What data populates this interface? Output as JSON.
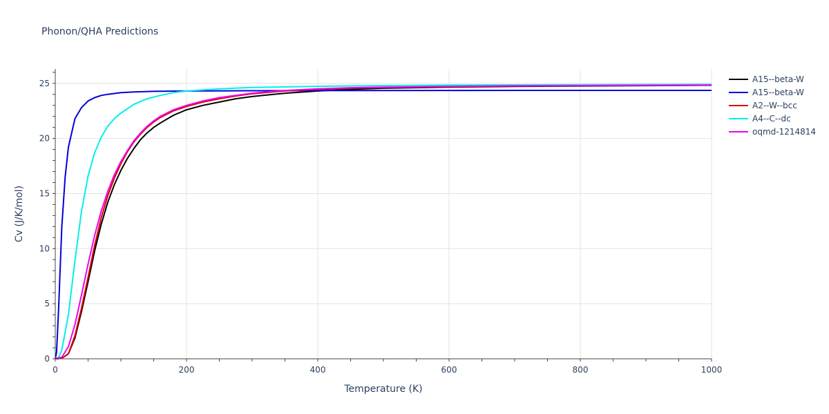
{
  "chart_data": {
    "type": "line",
    "title": "Phonon/QHA Predictions",
    "xlabel": "Temperature (K)",
    "ylabel": "Cv (J/K/mol)",
    "xlim": [
      0,
      1000
    ],
    "ylim": [
      0,
      26.3
    ],
    "xticks": [
      0,
      200,
      400,
      600,
      800,
      1000
    ],
    "yticks": [
      0,
      5,
      10,
      15,
      20,
      25
    ],
    "grid": true,
    "legend_position": "top-right outside",
    "series": [
      {
        "name": "A15--beta-W",
        "color": "#000000",
        "x": [
          0,
          10,
          20,
          30,
          40,
          50,
          60,
          70,
          80,
          90,
          100,
          110,
          120,
          130,
          140,
          150,
          160,
          180,
          200,
          225,
          250,
          275,
          300,
          350,
          400,
          450,
          500,
          600,
          700,
          800,
          900,
          1000
        ],
        "y": [
          0,
          0.05,
          0.45,
          1.9,
          4.3,
          7.0,
          9.8,
          12.2,
          14.2,
          15.8,
          17.1,
          18.2,
          19.1,
          19.9,
          20.5,
          21.0,
          21.4,
          22.1,
          22.6,
          23.0,
          23.3,
          23.6,
          23.8,
          24.1,
          24.3,
          24.45,
          24.55,
          24.65,
          24.72,
          24.76,
          24.79,
          24.82
        ]
      },
      {
        "name": "A15--beta-W",
        "color": "#0000dd",
        "x": [
          0,
          2,
          5,
          10,
          15,
          20,
          30,
          40,
          50,
          60,
          70,
          80,
          100,
          120,
          150,
          200,
          300,
          400,
          600,
          800,
          1000
        ],
        "y": [
          0,
          0.6,
          4.5,
          12.0,
          16.5,
          19.2,
          21.8,
          22.8,
          23.4,
          23.7,
          23.9,
          24.0,
          24.15,
          24.22,
          24.27,
          24.3,
          24.33,
          24.34,
          24.35,
          24.36,
          24.36
        ]
      },
      {
        "name": "A2--W--bcc",
        "color": "#dd0000",
        "x": [
          0,
          10,
          20,
          30,
          40,
          50,
          60,
          70,
          80,
          90,
          100,
          110,
          120,
          130,
          140,
          150,
          160,
          180,
          200,
          225,
          250,
          275,
          300,
          350,
          400,
          450,
          500,
          600,
          700,
          800,
          900,
          1000
        ],
        "y": [
          0,
          0.05,
          0.45,
          2.1,
          4.6,
          7.4,
          10.3,
          12.8,
          14.8,
          16.4,
          17.7,
          18.8,
          19.7,
          20.4,
          21.0,
          21.5,
          21.9,
          22.5,
          22.9,
          23.3,
          23.6,
          23.85,
          24.05,
          24.3,
          24.45,
          24.55,
          24.62,
          24.7,
          24.75,
          24.79,
          24.81,
          24.83
        ]
      },
      {
        "name": "A4--C--dc",
        "color": "#00eeee",
        "x": [
          0,
          5,
          10,
          20,
          30,
          40,
          50,
          60,
          70,
          80,
          90,
          100,
          120,
          140,
          160,
          180,
          200,
          250,
          300,
          400,
          500,
          600,
          800,
          1000
        ],
        "y": [
          0,
          0.1,
          0.8,
          4.0,
          8.9,
          13.4,
          16.6,
          18.7,
          20.1,
          21.1,
          21.8,
          22.3,
          23.1,
          23.6,
          23.9,
          24.15,
          24.3,
          24.5,
          24.62,
          24.73,
          24.8,
          24.84,
          24.88,
          24.9
        ]
      },
      {
        "name": "oqmd-1214814",
        "color": "#ee00ee",
        "x": [
          0,
          10,
          20,
          30,
          40,
          50,
          60,
          70,
          80,
          90,
          100,
          110,
          120,
          130,
          140,
          150,
          160,
          180,
          200,
          225,
          250,
          275,
          300,
          350,
          400,
          450,
          500,
          600,
          700,
          800,
          900,
          1000
        ],
        "y": [
          0,
          0.15,
          1.1,
          3.1,
          5.8,
          8.6,
          11.2,
          13.4,
          15.2,
          16.7,
          17.9,
          18.9,
          19.8,
          20.5,
          21.1,
          21.6,
          22.0,
          22.6,
          23.0,
          23.4,
          23.7,
          23.9,
          24.1,
          24.35,
          24.5,
          24.6,
          24.65,
          24.72,
          24.77,
          24.8,
          24.82,
          24.84
        ]
      }
    ]
  }
}
